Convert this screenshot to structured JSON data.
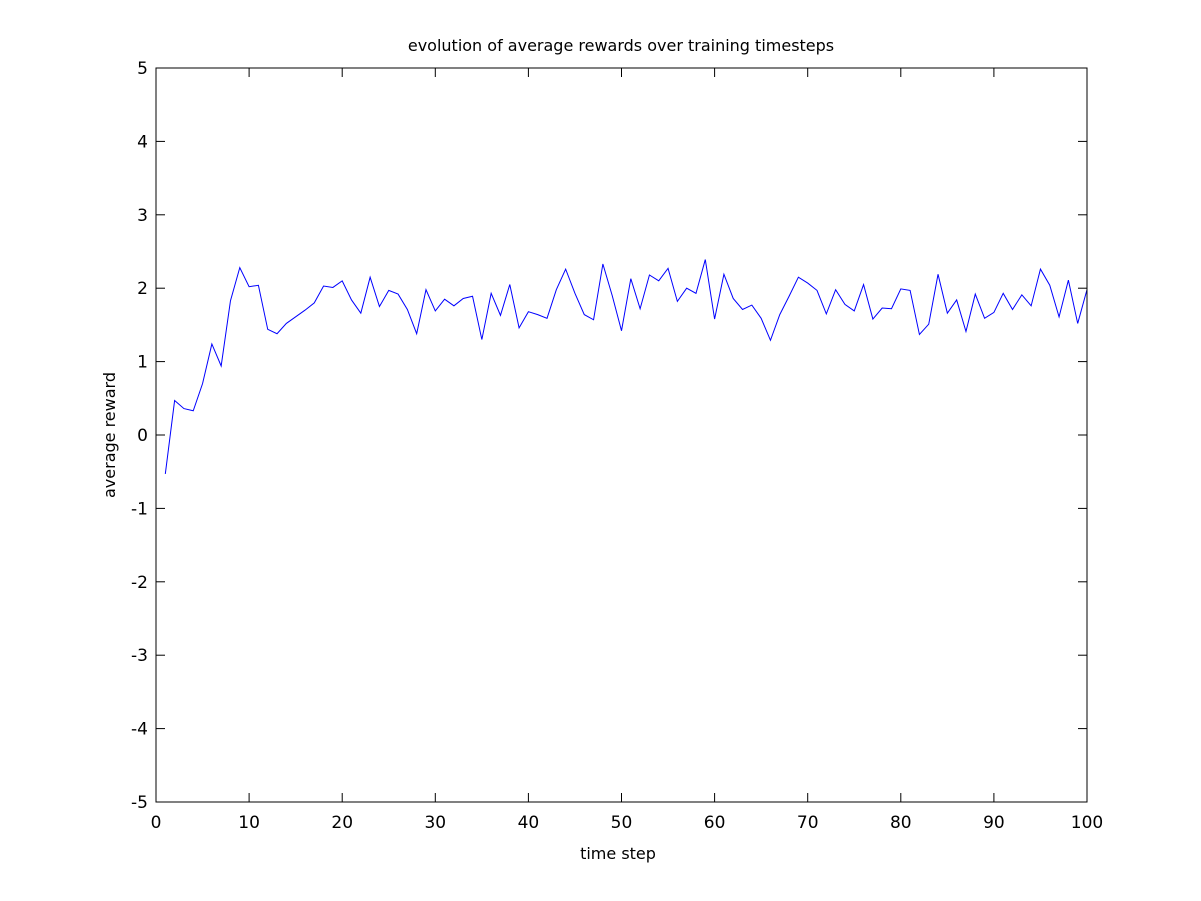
{
  "chart_data": {
    "type": "line",
    "title": "evolution of average rewards over training timesteps",
    "xlabel": "time step",
    "ylabel": "average reward",
    "xlim": [
      0,
      100
    ],
    "ylim": [
      -5,
      5
    ],
    "xticks": [
      0,
      10,
      20,
      30,
      40,
      50,
      60,
      70,
      80,
      90,
      100
    ],
    "yticks": [
      -5,
      -4,
      -3,
      -2,
      -1,
      0,
      1,
      2,
      3,
      4,
      5
    ],
    "grid": false,
    "legend": "none",
    "series": [
      {
        "color": "#0000ff",
        "x": [
          1,
          2,
          3,
          4,
          5,
          6,
          7,
          8,
          9,
          10,
          11,
          12,
          13,
          14,
          15,
          16,
          17,
          18,
          19,
          20,
          21,
          22,
          23,
          24,
          25,
          26,
          27,
          28,
          29,
          30,
          31,
          32,
          33,
          34,
          35,
          36,
          37,
          38,
          39,
          40,
          41,
          42,
          43,
          44,
          45,
          46,
          47,
          48,
          49,
          50,
          51,
          52,
          53,
          54,
          55,
          56,
          57,
          58,
          59,
          60,
          61,
          62,
          63,
          64,
          65,
          66,
          67,
          68,
          69,
          70,
          71,
          72,
          73,
          74,
          75,
          76,
          77,
          78,
          79,
          80,
          81,
          82,
          83,
          84,
          85,
          86,
          87,
          88,
          89,
          90,
          91,
          92,
          93,
          94,
          95,
          96,
          97,
          98,
          99,
          100
        ],
        "y": [
          -0.53,
          0.47,
          0.36,
          0.33,
          0.7,
          1.24,
          0.94,
          1.83,
          2.28,
          2.02,
          2.04,
          1.44,
          1.38,
          1.52,
          1.61,
          1.7,
          1.8,
          2.03,
          2.01,
          2.1,
          1.84,
          1.66,
          2.15,
          1.75,
          1.97,
          1.92,
          1.71,
          1.38,
          1.98,
          1.69,
          1.85,
          1.76,
          1.86,
          1.89,
          1.3,
          1.93,
          1.63,
          2.05,
          1.46,
          1.68,
          1.64,
          1.59,
          1.98,
          2.26,
          1.93,
          1.64,
          1.57,
          2.33,
          1.9,
          1.42,
          2.13,
          1.72,
          2.18,
          2.1,
          2.27,
          1.82,
          2.0,
          1.93,
          2.39,
          1.58,
          2.19,
          1.86,
          1.71,
          1.77,
          1.59,
          1.29,
          1.64,
          1.89,
          2.15,
          2.07,
          1.97,
          1.65,
          1.98,
          1.78,
          1.69,
          2.05,
          1.58,
          1.73,
          1.72,
          1.99,
          1.97,
          1.37,
          1.51,
          2.19,
          1.66,
          1.84,
          1.41,
          1.92,
          1.59,
          1.67,
          1.93,
          1.71,
          1.91,
          1.76,
          2.26,
          2.04,
          1.61,
          2.11,
          1.52,
          1.98
        ]
      }
    ]
  }
}
